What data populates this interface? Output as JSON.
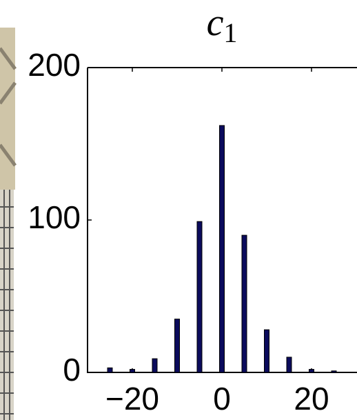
{
  "chart_data": {
    "type": "bar",
    "title": {
      "text": "c",
      "subscript": "1"
    },
    "x": [
      -25,
      -20,
      -15,
      -10,
      -5,
      0,
      5,
      10,
      15,
      20,
      25
    ],
    "values": [
      3,
      2,
      9,
      35,
      99,
      162,
      90,
      28,
      10,
      2,
      1
    ],
    "color": "#0b0b5c",
    "xlim": [
      -30,
      30
    ],
    "xticks": [
      {
        "value": -20,
        "label": "−20"
      },
      0,
      20
    ],
    "ylim": [
      0,
      200
    ],
    "yticks": [
      0,
      100,
      200
    ]
  }
}
